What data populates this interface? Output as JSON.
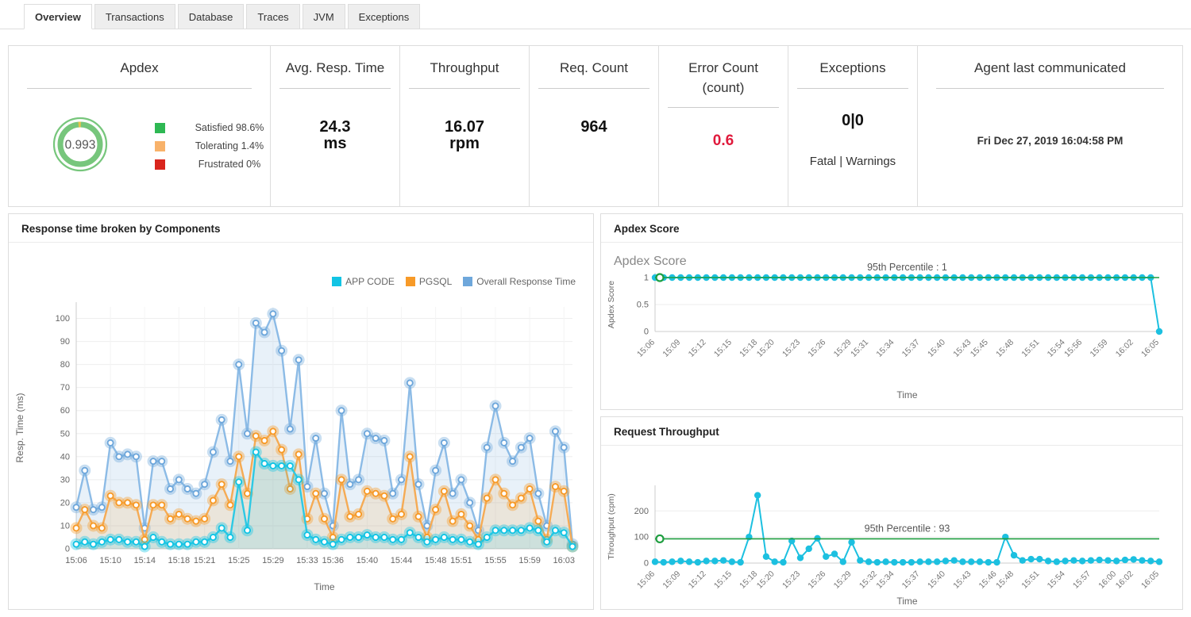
{
  "tabs": {
    "items": [
      {
        "label": "Overview",
        "active": true
      },
      {
        "label": "Transactions",
        "active": false
      },
      {
        "label": "Database",
        "active": false
      },
      {
        "label": "Traces",
        "active": false
      },
      {
        "label": "JVM",
        "active": false
      },
      {
        "label": "Exceptions",
        "active": false
      }
    ]
  },
  "kpi": {
    "apdex": {
      "title": "Apdex",
      "value": "0.993",
      "gauge_color": "#77c67c",
      "gauge_notch_color": "#e6c34c",
      "legend": [
        {
          "label": "Satisfied 98.6%",
          "color": "#2eb853"
        },
        {
          "label": "Tolerating 1.4%",
          "color": "#f8b26a"
        },
        {
          "label": "Frustrated 0%",
          "color": "#d9251d"
        }
      ]
    },
    "avg_resp_time": {
      "title": "Avg. Resp. Time",
      "value": "24.3",
      "unit": "ms"
    },
    "throughput": {
      "title": "Throughput",
      "value": "16.07",
      "unit": "rpm"
    },
    "req_count": {
      "title": "Req. Count",
      "value": "964"
    },
    "error_count": {
      "title": "Error Count (count)",
      "value": "0.6",
      "value_color": "#e01a3c"
    },
    "exceptions": {
      "title": "Exceptions",
      "value": "0|0",
      "subtitle": "Fatal | Warnings"
    },
    "agent": {
      "title": "Agent last communicated",
      "value": "Fri Dec 27, 2019 16:04:58 PM"
    }
  },
  "panels": {
    "response_time": {
      "title": "Response time broken by Components"
    },
    "apdex_score": {
      "title": "Apdex Score"
    },
    "request_throughput": {
      "title": "Request Throughput"
    }
  },
  "chart_data": [
    {
      "id": "main",
      "type": "line",
      "title": "Response time broken by Components",
      "xlabel": "Time",
      "ylabel": "Resp. Time (ms)",
      "ylim": [
        0,
        105
      ],
      "yticks": [
        0,
        10,
        20,
        30,
        40,
        50,
        60,
        70,
        80,
        90,
        100
      ],
      "legend_position": "top-right",
      "grid": true,
      "x_start": "15:06",
      "x_interval_minutes": 1,
      "xtick_labels": [
        "15:06",
        "15:10",
        "15:14",
        "15:18",
        "15:21",
        "15:25",
        "15:29",
        "15:33",
        "15:36",
        "15:40",
        "15:44",
        "15:48",
        "15:51",
        "15:55",
        "15:59",
        "16:03"
      ],
      "xtick_positions": [
        0,
        4,
        8,
        12,
        15,
        19,
        23,
        27,
        30,
        34,
        38,
        42,
        45,
        49,
        53,
        57
      ],
      "series": [
        {
          "name": "Overall Response Time",
          "color": "#6ea7db",
          "line_color": "#8cbbe6",
          "fill": "rgba(110,167,219,0.16)",
          "marker": "ring",
          "values": [
            18,
            34,
            17,
            18,
            46,
            40,
            41,
            40,
            9,
            38,
            38,
            26,
            30,
            26,
            24,
            28,
            42,
            56,
            38,
            80,
            50,
            98,
            94,
            102,
            86,
            52,
            82,
            27,
            48,
            24,
            10,
            60,
            28,
            30,
            50,
            48,
            47,
            24,
            30,
            72,
            28,
            10,
            34,
            46,
            24,
            30,
            20,
            8,
            44,
            62,
            46,
            38,
            44,
            48,
            24,
            10,
            51,
            44,
            2
          ]
        },
        {
          "name": "PGSQL",
          "color": "#f79a28",
          "line_color": "#f5ab55",
          "fill": "rgba(247,154,40,0.14)",
          "marker": "ring",
          "values": [
            9,
            17,
            10,
            9,
            23,
            20,
            20,
            19,
            4,
            19,
            19,
            13,
            15,
            13,
            12,
            13,
            21,
            28,
            19,
            40,
            24,
            49,
            47,
            51,
            43,
            26,
            41,
            13,
            24,
            13,
            5,
            30,
            14,
            15,
            25,
            24,
            23,
            13,
            15,
            40,
            14,
            5,
            17,
            25,
            12,
            15,
            10,
            4,
            22,
            30,
            24,
            19,
            22,
            26,
            12,
            4,
            27,
            25,
            1
          ]
        },
        {
          "name": "APP CODE",
          "color": "#12c4e4",
          "line_color": "#2ec9e4",
          "fill": "rgba(18,196,228,0.13)",
          "marker": "ring",
          "values": [
            2,
            3,
            2,
            3,
            4,
            4,
            3,
            3,
            1,
            5,
            3,
            2,
            2,
            2,
            3,
            3,
            5,
            9,
            5,
            29,
            8,
            42,
            37,
            36,
            36,
            36,
            30,
            6,
            4,
            3,
            2,
            4,
            5,
            5,
            6,
            5,
            5,
            4,
            4,
            7,
            5,
            3,
            4,
            5,
            4,
            4,
            3,
            2,
            5,
            8,
            8,
            8,
            8,
            9,
            8,
            3,
            8,
            7,
            1
          ]
        }
      ],
      "legend_order": [
        "APP CODE",
        "PGSQL",
        "Overall Response Time"
      ]
    },
    {
      "id": "apdex",
      "type": "line",
      "title": "Apdex Score",
      "xlabel": "Time",
      "ylabel": "Apdex Score",
      "ylim": [
        0,
        1
      ],
      "yticks": [
        0,
        0.5,
        1
      ],
      "grid": true,
      "percentile": {
        "label": "95th Percentile : 1",
        "value": 1,
        "color": "#1f9e40"
      },
      "x_start": "15:06",
      "x_interval_minutes": 1,
      "xtick_labels": [
        "15:06",
        "15:09",
        "15:12",
        "15:15",
        "15:18",
        "15:20",
        "15:23",
        "15:26",
        "15:29",
        "15:31",
        "15:34",
        "15:37",
        "15:40",
        "15:43",
        "15:45",
        "15:48",
        "15:51",
        "15:54",
        "15:56",
        "15:59",
        "16:02",
        "16:05"
      ],
      "xtick_positions": [
        0,
        3,
        6,
        9,
        12,
        14,
        17,
        20,
        23,
        25,
        28,
        31,
        34,
        37,
        39,
        42,
        45,
        48,
        50,
        53,
        56,
        59
      ],
      "series": [
        {
          "name": "Apdex Score",
          "color": "#1cc0e0",
          "line_color": "#1cc0e0",
          "marker": "dot",
          "values": [
            1,
            1,
            1,
            1,
            1,
            1,
            1,
            1,
            1,
            1,
            1,
            1,
            1,
            1,
            1,
            1,
            1,
            1,
            1,
            1,
            1,
            1,
            1,
            1,
            1,
            1,
            1,
            1,
            1,
            1,
            1,
            1,
            1,
            1,
            1,
            1,
            1,
            1,
            1,
            1,
            1,
            1,
            1,
            1,
            1,
            1,
            1,
            1,
            1,
            1,
            1,
            1,
            1,
            1,
            1,
            1,
            1,
            1,
            1,
            0
          ]
        }
      ]
    },
    {
      "id": "throughput",
      "type": "line",
      "title": "Request Throughput",
      "xlabel": "Time",
      "ylabel": "Throughput (cpm)",
      "ylim": [
        0,
        280
      ],
      "yticks": [
        0,
        100,
        200
      ],
      "grid": true,
      "percentile": {
        "label": "95th Percentile : 93",
        "value": 93,
        "color": "#1f9e40"
      },
      "x_start": "15:06",
      "x_interval_minutes": 1,
      "xtick_labels": [
        "15:06",
        "15:09",
        "15:12",
        "15:15",
        "15:18",
        "15:20",
        "15:23",
        "15:26",
        "15:29",
        "15:32",
        "15:34",
        "15:37",
        "15:40",
        "15:43",
        "15:46",
        "15:48",
        "15:51",
        "15:54",
        "15:57",
        "16:00",
        "16:02",
        "16:05"
      ],
      "xtick_positions": [
        0,
        3,
        6,
        9,
        12,
        14,
        17,
        20,
        23,
        26,
        28,
        31,
        34,
        37,
        40,
        42,
        45,
        48,
        51,
        54,
        56,
        59
      ],
      "series": [
        {
          "name": "Request Throughput",
          "color": "#1cc0e0",
          "line_color": "#1cc0e0",
          "marker": "dot",
          "values": [
            5,
            3,
            5,
            8,
            5,
            3,
            8,
            8,
            10,
            5,
            3,
            100,
            260,
            25,
            5,
            3,
            85,
            20,
            55,
            95,
            25,
            35,
            5,
            80,
            10,
            5,
            3,
            5,
            3,
            3,
            3,
            5,
            5,
            5,
            8,
            10,
            5,
            5,
            5,
            3,
            3,
            100,
            30,
            10,
            15,
            15,
            8,
            5,
            8,
            10,
            8,
            10,
            12,
            10,
            8,
            12,
            14,
            10,
            8,
            5
          ]
        }
      ]
    }
  ]
}
